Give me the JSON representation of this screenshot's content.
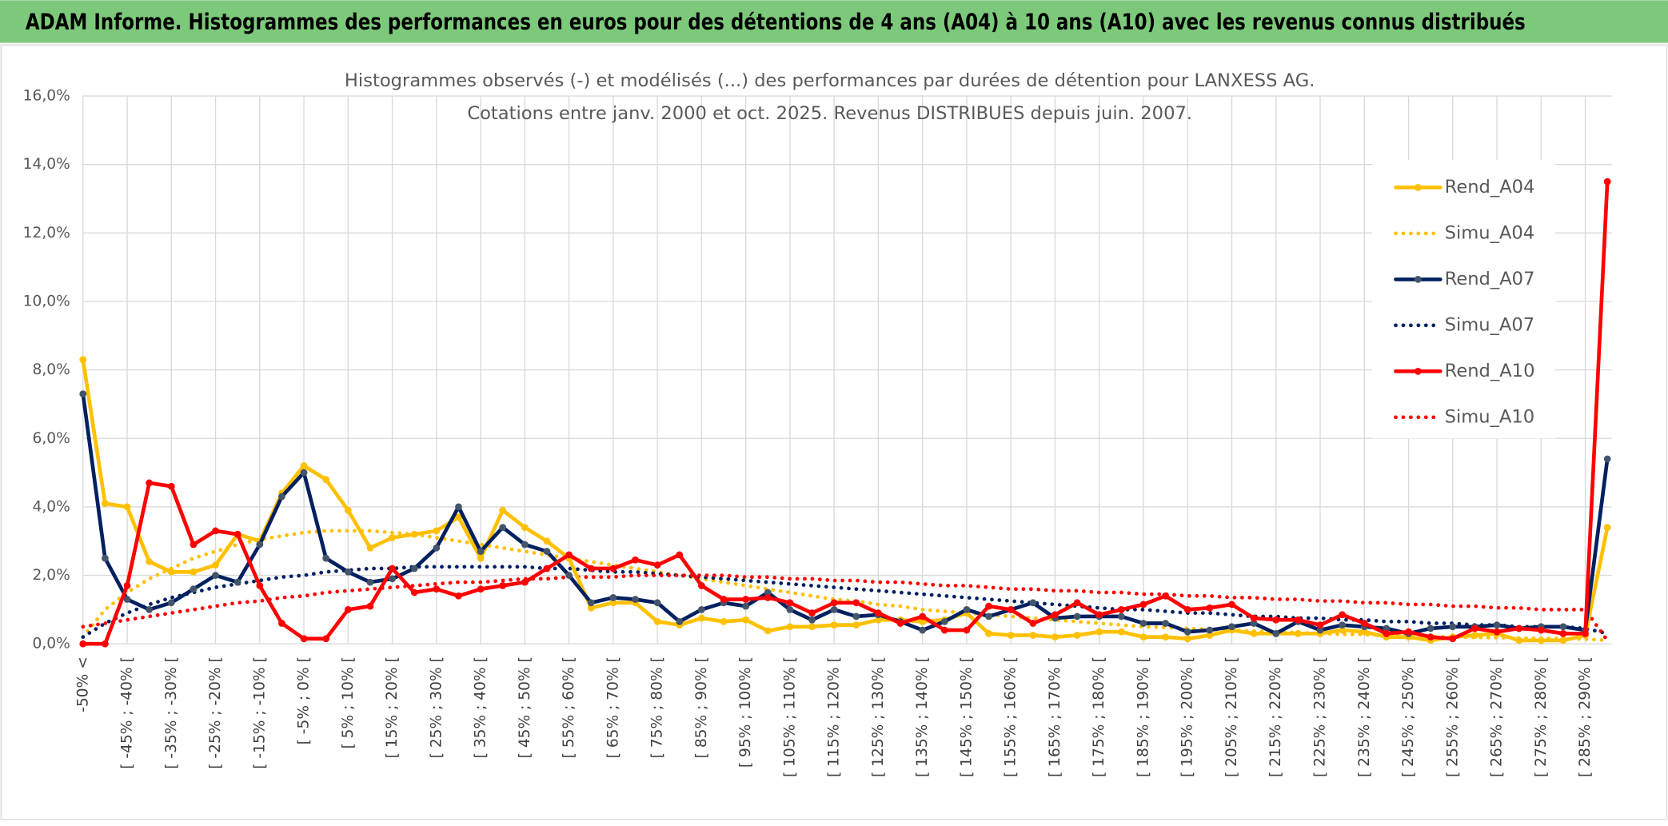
{
  "header": {
    "title": "ADAM Informe. Histogrammes des performances en euros pour des détentions de 4 ans (A04) à 10 ans (A10) avec les revenus connus distribués"
  },
  "chart_data": {
    "type": "line",
    "title": "Histogrammes observés (-) et modélisés (...) des performances par durées de détention pour LANXESS AG.",
    "subtitle": "Cotations entre janv. 2000 et oct. 2025. Revenus DISTRIBUES depuis juin. 2007.",
    "categories": [
      "-50% <",
      null,
      "[ -45% ; -40% [",
      null,
      "[ -35% ; -30% [",
      null,
      "[ -25% ; -20% [",
      null,
      "[ -15% ; -10% [",
      null,
      "[ -5% ; 0% [",
      null,
      "[ 5% ; 10% [",
      null,
      "[ 15% ; 20% [",
      null,
      "[ 25% ; 30% [",
      null,
      "[ 35% ; 40% [",
      null,
      "[ 45% ; 50% [",
      null,
      "[ 55% ; 60% [",
      null,
      "[ 65% ; 70% [",
      null,
      "[ 75% ; 80% [",
      null,
      "[ 85% ; 90% [",
      null,
      "[ 95% ; 100% [",
      null,
      "[ 105% ; 110% [",
      null,
      "[ 115% ; 120% [",
      null,
      "[ 125% ; 130% [",
      null,
      "[ 135% ; 140% [",
      null,
      "[ 145% ; 150% [",
      null,
      "[ 155% ; 160% [",
      null,
      "[ 165% ; 170% [",
      null,
      "[ 175% ; 180% [",
      null,
      "[ 185% ; 190% [",
      null,
      "[ 195% ; 200% [",
      null,
      "[ 205% ; 210% [",
      null,
      "[ 215% ; 220% [",
      null,
      "[ 225% ; 230% [",
      null,
      "[ 235% ; 240% [",
      null,
      "[ 245% ; 250% [",
      null,
      "[ 255% ; 260% [",
      null,
      "[ 265% ; 270% [",
      null,
      "[ 275% ; 280% [",
      null,
      "[ 285% ; 290% [",
      null
    ],
    "ylim": [
      0,
      16
    ],
    "yticks": [
      {
        "value": 0,
        "label": "0,0%"
      },
      {
        "value": 2,
        "label": "2,0%"
      },
      {
        "value": 4,
        "label": "4,0%"
      },
      {
        "value": 6,
        "label": "6,0%"
      },
      {
        "value": 8,
        "label": "8,0%"
      },
      {
        "value": 10,
        "label": "10,0%"
      },
      {
        "value": 12,
        "label": "12,0%"
      },
      {
        "value": 14,
        "label": "14,0%"
      },
      {
        "value": 16,
        "label": "16,0%"
      }
    ],
    "grid": true,
    "legend": "right",
    "series": [
      {
        "name": "Rend_A04",
        "color": "#ffc000",
        "style": "solid",
        "marker_color": "#ffc000",
        "values": [
          8.3,
          4.1,
          4.0,
          2.4,
          2.1,
          2.1,
          2.3,
          3.2,
          3.0,
          4.4,
          5.2,
          4.8,
          3.9,
          2.8,
          3.1,
          3.2,
          3.3,
          3.7,
          2.5,
          3.9,
          3.4,
          3.0,
          2.5,
          1.05,
          1.2,
          1.2,
          0.65,
          0.55,
          0.75,
          0.65,
          0.7,
          0.38,
          0.5,
          0.5,
          0.55,
          0.55,
          0.7,
          0.7,
          0.65,
          0.7,
          0.9,
          0.3,
          0.25,
          0.25,
          0.2,
          0.25,
          0.35,
          0.35,
          0.2,
          0.2,
          0.15,
          0.25,
          0.4,
          0.3,
          0.3,
          0.3,
          0.3,
          0.4,
          0.35,
          0.2,
          0.2,
          0.1,
          0.2,
          0.25,
          0.3,
          0.1,
          0.1,
          0.1,
          0.25,
          3.4
        ]
      },
      {
        "name": "Simu_A04",
        "color": "#ffc000",
        "style": "dotted",
        "values": [
          0.2,
          1.0,
          1.5,
          1.9,
          2.2,
          2.5,
          2.7,
          2.9,
          3.05,
          3.15,
          3.25,
          3.3,
          3.3,
          3.3,
          3.25,
          3.2,
          3.1,
          3.0,
          2.9,
          2.8,
          2.7,
          2.6,
          2.5,
          2.4,
          2.3,
          2.2,
          2.1,
          2.0,
          1.9,
          1.8,
          1.7,
          1.6,
          1.5,
          1.4,
          1.3,
          1.25,
          1.15,
          1.1,
          1.0,
          0.95,
          0.9,
          0.85,
          0.8,
          0.75,
          0.7,
          0.65,
          0.6,
          0.55,
          0.5,
          0.48,
          0.45,
          0.42,
          0.4,
          0.37,
          0.35,
          0.33,
          0.3,
          0.28,
          0.27,
          0.25,
          0.23,
          0.22,
          0.2,
          0.19,
          0.18,
          0.17,
          0.16,
          0.15,
          0.14,
          0.1
        ]
      },
      {
        "name": "Rend_A07",
        "color": "#002060",
        "style": "solid",
        "marker_color": "#44546a",
        "values": [
          7.3,
          2.5,
          1.3,
          1.0,
          1.2,
          1.6,
          2.0,
          1.8,
          2.9,
          4.3,
          5.0,
          2.5,
          2.1,
          1.8,
          1.9,
          2.2,
          2.8,
          4.0,
          2.7,
          3.4,
          2.9,
          2.7,
          2.0,
          1.2,
          1.35,
          1.3,
          1.2,
          0.65,
          1.0,
          1.2,
          1.1,
          1.5,
          1.0,
          0.7,
          1.0,
          0.8,
          0.85,
          0.65,
          0.4,
          0.65,
          1.0,
          0.8,
          1.0,
          1.2,
          0.75,
          0.8,
          0.8,
          0.8,
          0.6,
          0.6,
          0.35,
          0.4,
          0.5,
          0.6,
          0.3,
          0.65,
          0.4,
          0.55,
          0.5,
          0.45,
          0.3,
          0.45,
          0.5,
          0.5,
          0.55,
          0.45,
          0.5,
          0.5,
          0.4,
          5.4
        ]
      },
      {
        "name": "Simu_A07",
        "color": "#002060",
        "style": "dotted",
        "values": [
          0.2,
          0.6,
          0.9,
          1.15,
          1.35,
          1.5,
          1.65,
          1.75,
          1.85,
          1.95,
          2.0,
          2.1,
          2.15,
          2.2,
          2.2,
          2.25,
          2.25,
          2.25,
          2.25,
          2.25,
          2.25,
          2.2,
          2.2,
          2.15,
          2.1,
          2.1,
          2.05,
          2.0,
          1.95,
          1.9,
          1.85,
          1.8,
          1.75,
          1.7,
          1.65,
          1.6,
          1.55,
          1.5,
          1.45,
          1.4,
          1.35,
          1.3,
          1.25,
          1.2,
          1.15,
          1.1,
          1.05,
          1.0,
          1.0,
          0.95,
          0.9,
          0.9,
          0.85,
          0.8,
          0.8,
          0.75,
          0.75,
          0.7,
          0.7,
          0.65,
          0.65,
          0.6,
          0.6,
          0.55,
          0.55,
          0.5,
          0.5,
          0.5,
          0.45,
          0.3
        ]
      },
      {
        "name": "Rend_A10",
        "color": "#ff0000",
        "style": "solid",
        "marker_color": "#ff0000",
        "values": [
          0.0,
          0.0,
          1.7,
          4.7,
          4.6,
          2.9,
          3.3,
          3.2,
          1.7,
          0.6,
          0.15,
          0.15,
          1.0,
          1.1,
          2.2,
          1.5,
          1.6,
          1.4,
          1.6,
          1.7,
          1.8,
          2.2,
          2.6,
          2.2,
          2.2,
          2.45,
          2.3,
          2.6,
          1.7,
          1.3,
          1.3,
          1.35,
          1.2,
          0.9,
          1.2,
          1.2,
          0.9,
          0.6,
          0.8,
          0.4,
          0.4,
          1.1,
          1.0,
          0.6,
          0.85,
          1.2,
          0.85,
          1.0,
          1.15,
          1.4,
          1.0,
          1.05,
          1.15,
          0.75,
          0.7,
          0.7,
          0.55,
          0.85,
          0.6,
          0.3,
          0.35,
          0.2,
          0.15,
          0.45,
          0.35,
          0.45,
          0.4,
          0.3,
          0.3,
          13.5
        ]
      },
      {
        "name": "Simu_A10",
        "color": "#ff0000",
        "style": "dotted",
        "values": [
          0.5,
          0.6,
          0.7,
          0.8,
          0.9,
          1.0,
          1.1,
          1.2,
          1.25,
          1.35,
          1.4,
          1.5,
          1.55,
          1.6,
          1.65,
          1.7,
          1.75,
          1.8,
          1.8,
          1.85,
          1.9,
          1.9,
          1.95,
          1.95,
          1.95,
          2.0,
          2.0,
          2.0,
          2.0,
          2.0,
          1.95,
          1.95,
          1.9,
          1.9,
          1.85,
          1.85,
          1.8,
          1.8,
          1.75,
          1.7,
          1.7,
          1.65,
          1.6,
          1.6,
          1.55,
          1.55,
          1.5,
          1.5,
          1.45,
          1.45,
          1.4,
          1.4,
          1.35,
          1.35,
          1.3,
          1.3,
          1.25,
          1.25,
          1.2,
          1.2,
          1.15,
          1.15,
          1.1,
          1.1,
          1.05,
          1.05,
          1.0,
          1.0,
          1.0,
          0.1
        ]
      }
    ]
  }
}
